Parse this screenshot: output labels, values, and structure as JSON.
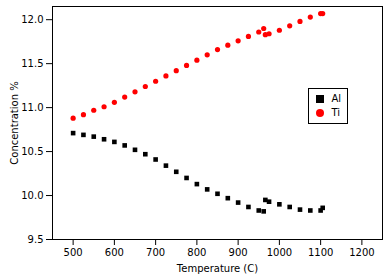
{
  "chart_data": {
    "type": "scatter",
    "x_label": "Temperature (C)",
    "y_label": "Concentration %",
    "x": [
      500,
      525,
      550,
      575,
      600,
      625,
      650,
      675,
      700,
      725,
      750,
      775,
      800,
      825,
      850,
      875,
      900,
      925,
      950,
      962,
      966,
      975,
      1000,
      1025,
      1050,
      1075,
      1100,
      1105
    ],
    "series": [
      {
        "name": "Al",
        "color": "#000000",
        "marker": "square",
        "values": [
          10.71,
          10.69,
          10.67,
          10.64,
          10.61,
          10.57,
          10.52,
          10.47,
          10.41,
          10.34,
          10.27,
          10.2,
          10.13,
          10.07,
          10.02,
          9.97,
          9.92,
          9.87,
          9.83,
          9.82,
          9.95,
          9.93,
          9.9,
          9.87,
          9.84,
          9.83,
          9.83,
          9.86
        ]
      },
      {
        "name": "Ti",
        "color": "#ff0000",
        "marker": "circle",
        "values": [
          10.88,
          10.92,
          10.97,
          11.01,
          11.06,
          11.12,
          11.18,
          11.24,
          11.3,
          11.36,
          11.42,
          11.48,
          11.54,
          11.6,
          11.66,
          11.71,
          11.76,
          11.81,
          11.86,
          11.9,
          11.83,
          11.84,
          11.88,
          11.93,
          11.98,
          12.03,
          12.07,
          12.07
        ]
      }
    ],
    "xlim": [
      450,
      1250
    ],
    "xticks": [
      500,
      600,
      700,
      800,
      900,
      1000,
      1100,
      1200
    ],
    "ylim": [
      9.5,
      12.15
    ],
    "yticks": [
      {
        "value": 9.5,
        "label": "9.5"
      },
      {
        "value": 10,
        "label": "10.0"
      },
      {
        "value": 10.5,
        "label": "10.5"
      },
      {
        "value": 11,
        "label": "11.0"
      },
      {
        "value": 11.5,
        "label": "11.5"
      },
      {
        "value": 12,
        "label": "12.0"
      }
    ],
    "legend": "right",
    "grid": false
  }
}
